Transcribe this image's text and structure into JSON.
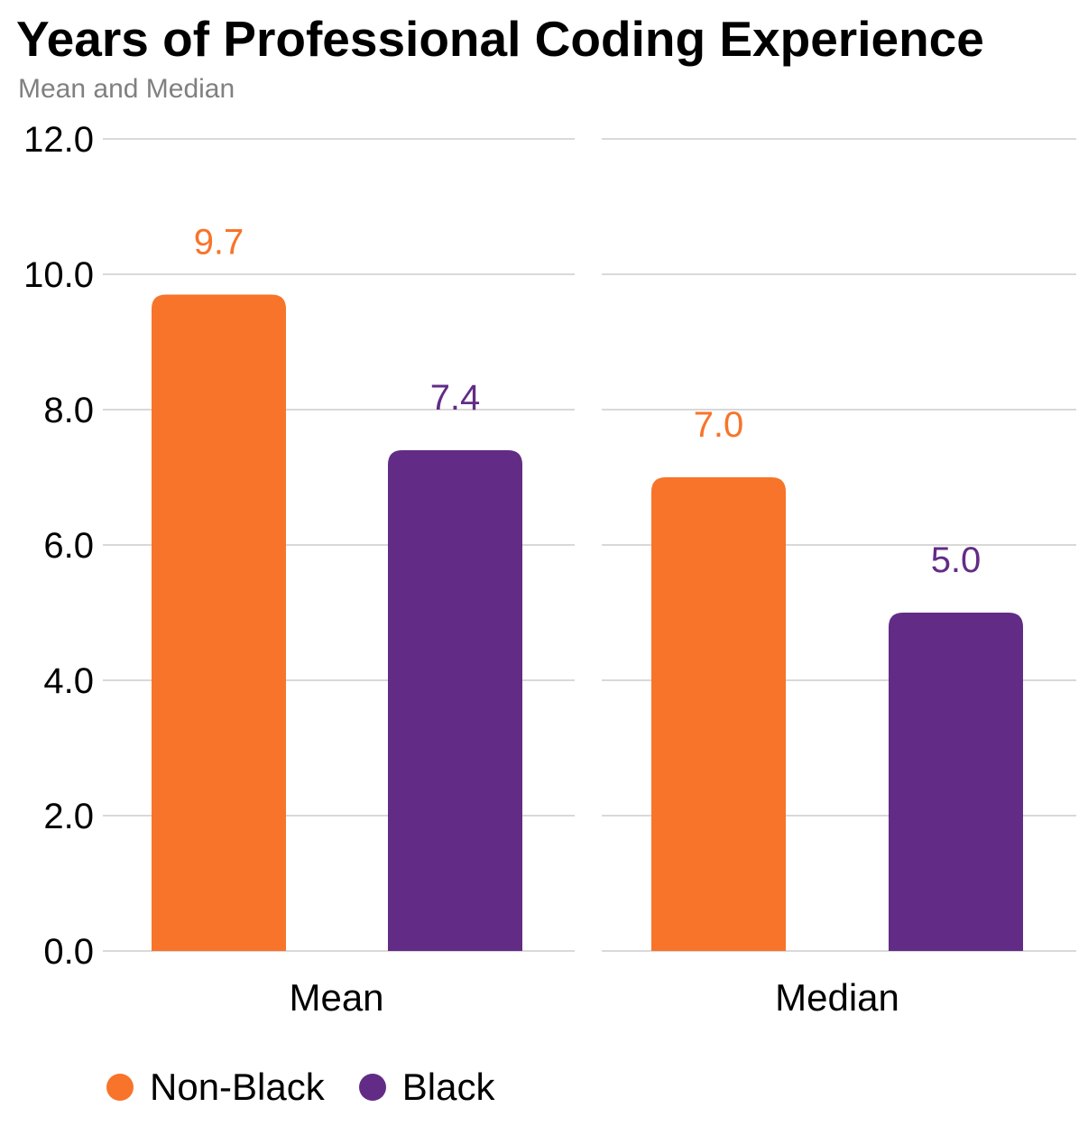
{
  "title": "Years of Professional Coding Experience",
  "subtitle": "Mean and Median",
  "colors": {
    "Non-Black": "#F7742A",
    "Black": "#622C86",
    "grid": "#d9d9d9",
    "text": "#000000"
  },
  "chart_data": {
    "type": "bar",
    "title": "Years of Professional Coding Experience",
    "subtitle": "Mean and Median",
    "categories": [
      "Mean",
      "Median"
    ],
    "series": [
      {
        "name": "Non-Black",
        "values": [
          9.7,
          7.0
        ],
        "color": "#F7742A"
      },
      {
        "name": "Black",
        "values": [
          7.4,
          5.0
        ],
        "color": "#622C86"
      }
    ],
    "data_labels": [
      [
        "9.7",
        "7.0"
      ],
      [
        "7.4",
        "5.0"
      ]
    ],
    "ylim": [
      0,
      12
    ],
    "yticks": [
      "0.0",
      "2.0",
      "4.0",
      "6.0",
      "8.0",
      "10.0",
      "12.0"
    ],
    "grid": true,
    "facets": [
      "Mean",
      "Median"
    ],
    "legend_position": "bottom-left"
  },
  "legend": [
    {
      "label": "Non-Black",
      "color": "#F7742A"
    },
    {
      "label": "Black",
      "color": "#622C86"
    }
  ]
}
